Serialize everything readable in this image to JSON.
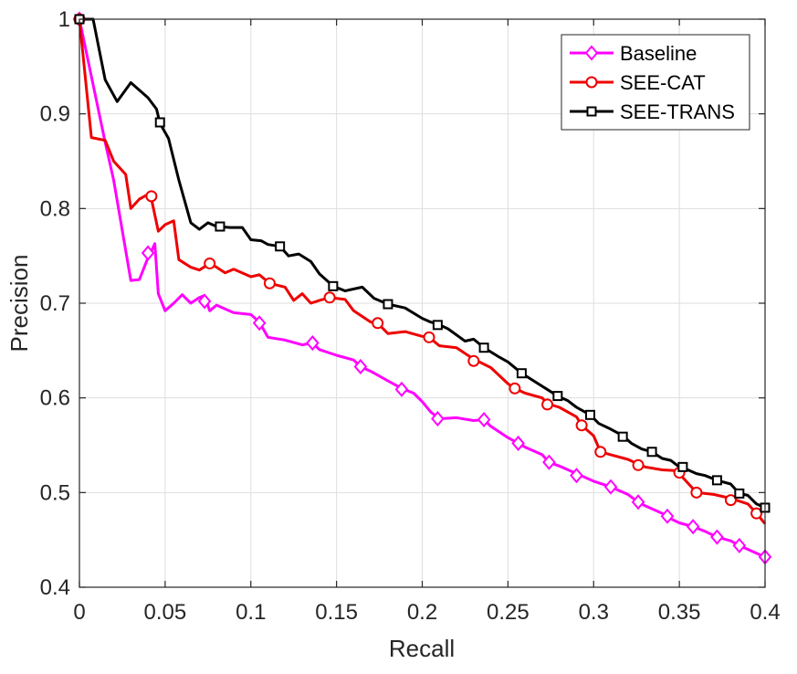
{
  "chart_data": {
    "type": "line",
    "title": "",
    "xlabel": "Recall",
    "ylabel": "Precision",
    "xlim": [
      0,
      0.4
    ],
    "ylim": [
      0.4,
      1.0
    ],
    "grid": true,
    "legend_position": "top-right",
    "x_ticks": [
      "0",
      "0.05",
      "0.1",
      "0.15",
      "0.2",
      "0.25",
      "0.3",
      "0.35",
      "0.4"
    ],
    "y_ticks": [
      "0.4",
      "0.5",
      "0.6",
      "0.7",
      "0.8",
      "0.9",
      "1"
    ],
    "series": [
      {
        "name": "Baseline",
        "color": "#ff00ff",
        "marker": "diamond",
        "x": [
          0.0,
          0.015,
          0.02,
          0.03,
          0.035,
          0.04,
          0.042,
          0.044,
          0.046,
          0.05,
          0.055,
          0.06,
          0.065,
          0.07,
          0.073,
          0.076,
          0.08,
          0.09,
          0.1,
          0.105,
          0.11,
          0.12,
          0.13,
          0.136,
          0.14,
          0.15,
          0.16,
          0.164,
          0.17,
          0.18,
          0.188,
          0.195,
          0.2,
          0.205,
          0.21,
          0.22,
          0.23,
          0.236,
          0.24,
          0.25,
          0.256,
          0.26,
          0.27,
          0.274,
          0.28,
          0.29,
          0.3,
          0.31,
          0.32,
          0.326,
          0.33,
          0.34,
          0.343,
          0.35,
          0.358,
          0.365,
          0.372,
          0.38,
          0.385,
          0.39,
          0.395,
          0.4
        ],
        "y": [
          1.0,
          0.87,
          0.83,
          0.724,
          0.725,
          0.748,
          0.755,
          0.763,
          0.71,
          0.692,
          0.7,
          0.709,
          0.7,
          0.706,
          0.708,
          0.692,
          0.698,
          0.69,
          0.688,
          0.68,
          0.664,
          0.661,
          0.656,
          0.658,
          0.651,
          0.645,
          0.64,
          0.633,
          0.628,
          0.618,
          0.61,
          0.605,
          0.596,
          0.585,
          0.578,
          0.579,
          0.576,
          0.577,
          0.57,
          0.558,
          0.552,
          0.548,
          0.54,
          0.532,
          0.528,
          0.52,
          0.512,
          0.506,
          0.498,
          0.49,
          0.486,
          0.478,
          0.474,
          0.468,
          0.464,
          0.459,
          0.453,
          0.449,
          0.444,
          0.44,
          0.436,
          0.432
        ],
        "markers_x": [
          0.0,
          0.04,
          0.073,
          0.105,
          0.136,
          0.164,
          0.188,
          0.209,
          0.236,
          0.256,
          0.274,
          0.29,
          0.31,
          0.326,
          0.343,
          0.358,
          0.372,
          0.385,
          0.4
        ],
        "markers_y": [
          1.0,
          0.753,
          0.702,
          0.679,
          0.658,
          0.633,
          0.609,
          0.578,
          0.577,
          0.552,
          0.532,
          0.518,
          0.506,
          0.49,
          0.475,
          0.464,
          0.453,
          0.444,
          0.432
        ]
      },
      {
        "name": "SEE-CAT",
        "color": "#ee0000",
        "marker": "circle",
        "x": [
          0.0,
          0.007,
          0.015,
          0.02,
          0.027,
          0.03,
          0.035,
          0.04,
          0.042,
          0.046,
          0.05,
          0.055,
          0.058,
          0.065,
          0.07,
          0.076,
          0.08,
          0.085,
          0.09,
          0.1,
          0.105,
          0.111,
          0.12,
          0.125,
          0.13,
          0.135,
          0.14,
          0.146,
          0.155,
          0.16,
          0.17,
          0.174,
          0.18,
          0.19,
          0.2,
          0.204,
          0.21,
          0.22,
          0.23,
          0.24,
          0.25,
          0.254,
          0.26,
          0.27,
          0.273,
          0.28,
          0.29,
          0.293,
          0.3,
          0.304,
          0.31,
          0.32,
          0.326,
          0.33,
          0.34,
          0.35,
          0.35,
          0.355,
          0.36,
          0.37,
          0.38,
          0.39,
          0.395,
          0.4
        ],
        "y": [
          1.0,
          0.875,
          0.872,
          0.85,
          0.836,
          0.8,
          0.81,
          0.815,
          0.81,
          0.776,
          0.783,
          0.787,
          0.746,
          0.738,
          0.735,
          0.742,
          0.738,
          0.732,
          0.736,
          0.728,
          0.73,
          0.721,
          0.717,
          0.703,
          0.71,
          0.7,
          0.703,
          0.706,
          0.704,
          0.692,
          0.68,
          0.679,
          0.668,
          0.67,
          0.665,
          0.664,
          0.655,
          0.653,
          0.641,
          0.632,
          0.615,
          0.61,
          0.605,
          0.6,
          0.594,
          0.59,
          0.58,
          0.571,
          0.56,
          0.543,
          0.54,
          0.535,
          0.53,
          0.527,
          0.524,
          0.523,
          0.52,
          0.51,
          0.5,
          0.498,
          0.494,
          0.488,
          0.478,
          0.467
        ],
        "markers_x": [
          0.0,
          0.042,
          0.076,
          0.111,
          0.146,
          0.174,
          0.204,
          0.23,
          0.254,
          0.273,
          0.293,
          0.304,
          0.326,
          0.35,
          0.36,
          0.38,
          0.395
        ],
        "markers_y": [
          1.0,
          0.813,
          0.742,
          0.721,
          0.706,
          0.679,
          0.664,
          0.639,
          0.61,
          0.593,
          0.571,
          0.543,
          0.529,
          0.521,
          0.5,
          0.492,
          0.478
        ]
      },
      {
        "name": "SEE-TRANS",
        "color": "#000000",
        "marker": "square",
        "x": [
          0.0,
          0.008,
          0.015,
          0.022,
          0.03,
          0.035,
          0.04,
          0.045,
          0.047,
          0.052,
          0.058,
          0.065,
          0.07,
          0.075,
          0.08,
          0.088,
          0.095,
          0.1,
          0.106,
          0.11,
          0.117,
          0.122,
          0.128,
          0.135,
          0.14,
          0.148,
          0.155,
          0.165,
          0.172,
          0.18,
          0.19,
          0.2,
          0.205,
          0.209,
          0.215,
          0.225,
          0.23,
          0.236,
          0.245,
          0.25,
          0.258,
          0.265,
          0.272,
          0.279,
          0.285,
          0.29,
          0.298,
          0.303,
          0.31,
          0.317,
          0.322,
          0.328,
          0.334,
          0.34,
          0.345,
          0.35,
          0.355,
          0.36,
          0.365,
          0.372,
          0.38,
          0.385,
          0.39,
          0.395,
          0.4
        ],
        "y": [
          1.0,
          1.0,
          0.936,
          0.913,
          0.933,
          0.925,
          0.917,
          0.905,
          0.89,
          0.874,
          0.83,
          0.785,
          0.778,
          0.785,
          0.781,
          0.78,
          0.78,
          0.767,
          0.766,
          0.762,
          0.76,
          0.75,
          0.752,
          0.744,
          0.731,
          0.718,
          0.713,
          0.717,
          0.705,
          0.699,
          0.695,
          0.684,
          0.68,
          0.678,
          0.673,
          0.66,
          0.662,
          0.653,
          0.643,
          0.638,
          0.626,
          0.618,
          0.61,
          0.602,
          0.597,
          0.59,
          0.582,
          0.573,
          0.567,
          0.56,
          0.552,
          0.546,
          0.543,
          0.536,
          0.534,
          0.527,
          0.524,
          0.52,
          0.518,
          0.513,
          0.509,
          0.499,
          0.497,
          0.488,
          0.484
        ],
        "markers_x": [
          0.0,
          0.047,
          0.082,
          0.117,
          0.148,
          0.18,
          0.209,
          0.236,
          0.258,
          0.279,
          0.298,
          0.317,
          0.334,
          0.352,
          0.372,
          0.385,
          0.4
        ],
        "markers_y": [
          1.0,
          0.891,
          0.781,
          0.76,
          0.718,
          0.699,
          0.677,
          0.653,
          0.626,
          0.602,
          0.582,
          0.559,
          0.543,
          0.527,
          0.513,
          0.499,
          0.484
        ]
      }
    ]
  }
}
